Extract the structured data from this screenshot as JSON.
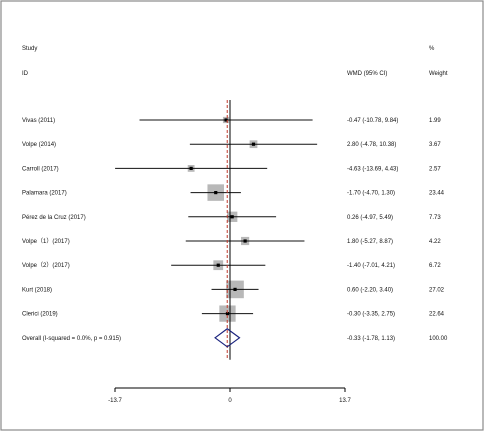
{
  "chart_data": {
    "type": "forest",
    "header": {
      "study": "Study",
      "id": "ID",
      "effect": "WMD (95% CI)",
      "pct": "%",
      "weight": "Weight"
    },
    "studies": [
      {
        "label": "Vivas (2011)",
        "est": -0.47,
        "lo": -10.78,
        "hi": 9.84,
        "ci_text": "-0.47 (-10.78, 9.84)",
        "weight": 1.99,
        "weight_text": "1.99"
      },
      {
        "label": "Volpe (2014)",
        "est": 2.8,
        "lo": -4.78,
        "hi": 10.38,
        "ci_text": "2.80 (-4.78, 10.38)",
        "weight": 3.67,
        "weight_text": "3.67"
      },
      {
        "label": "Carroll (2017)",
        "est": -4.63,
        "lo": -13.69,
        "hi": 4.43,
        "ci_text": "-4.63 (-13.69, 4.43)",
        "weight": 2.57,
        "weight_text": "2.57"
      },
      {
        "label": "Palamara (2017)",
        "est": -1.7,
        "lo": -4.7,
        "hi": 1.3,
        "ci_text": "-1.70 (-4.70, 1.30)",
        "weight": 23.44,
        "weight_text": "23.44"
      },
      {
        "label": "Pérez de la Cruz (2017)",
        "est": 0.26,
        "lo": -4.97,
        "hi": 5.49,
        "ci_text": "0.26 (-4.97, 5.49)",
        "weight": 7.73,
        "weight_text": "7.73"
      },
      {
        "label": "Volpe（1）(2017)",
        "est": 1.8,
        "lo": -5.27,
        "hi": 8.87,
        "ci_text": "1.80 (-5.27, 8.87)",
        "weight": 4.22,
        "weight_text": "4.22"
      },
      {
        "label": "Volpe（2）(2017)",
        "est": -1.4,
        "lo": -7.01,
        "hi": 4.21,
        "ci_text": "-1.40 (-7.01, 4.21)",
        "weight": 6.72,
        "weight_text": "6.72"
      },
      {
        "label": "Kurt (2018)",
        "est": 0.6,
        "lo": -2.2,
        "hi": 3.4,
        "ci_text": "0.60 (-2.20, 3.40)",
        "weight": 27.02,
        "weight_text": "27.02"
      },
      {
        "label": "Clerici (2019)",
        "est": -0.3,
        "lo": -3.35,
        "hi": 2.75,
        "ci_text": "-0.30 (-3.35, 2.75)",
        "weight": 22.64,
        "weight_text": "22.64"
      }
    ],
    "overall": {
      "label": "Overall  (I-squared = 0.0%, p = 0.915)",
      "est": -0.33,
      "lo": -1.78,
      "hi": 1.13,
      "ci_text": "-0.33 (-1.78, 1.13)",
      "weight_text": "100.00"
    },
    "xaxis": {
      "min": -13.7,
      "max": 13.7,
      "ticks": [
        -13.7,
        0,
        13.7
      ],
      "tick_labels": [
        "-13.7",
        "0",
        "13.7"
      ]
    },
    "colors": {
      "text": "#111111",
      "ci_line": "#111111",
      "weight_box": "#b8b8b8",
      "null_line": "#000000",
      "overall_line": "#c0392b",
      "diamond": "#1a237e",
      "frame": "#8a8a8a"
    }
  }
}
